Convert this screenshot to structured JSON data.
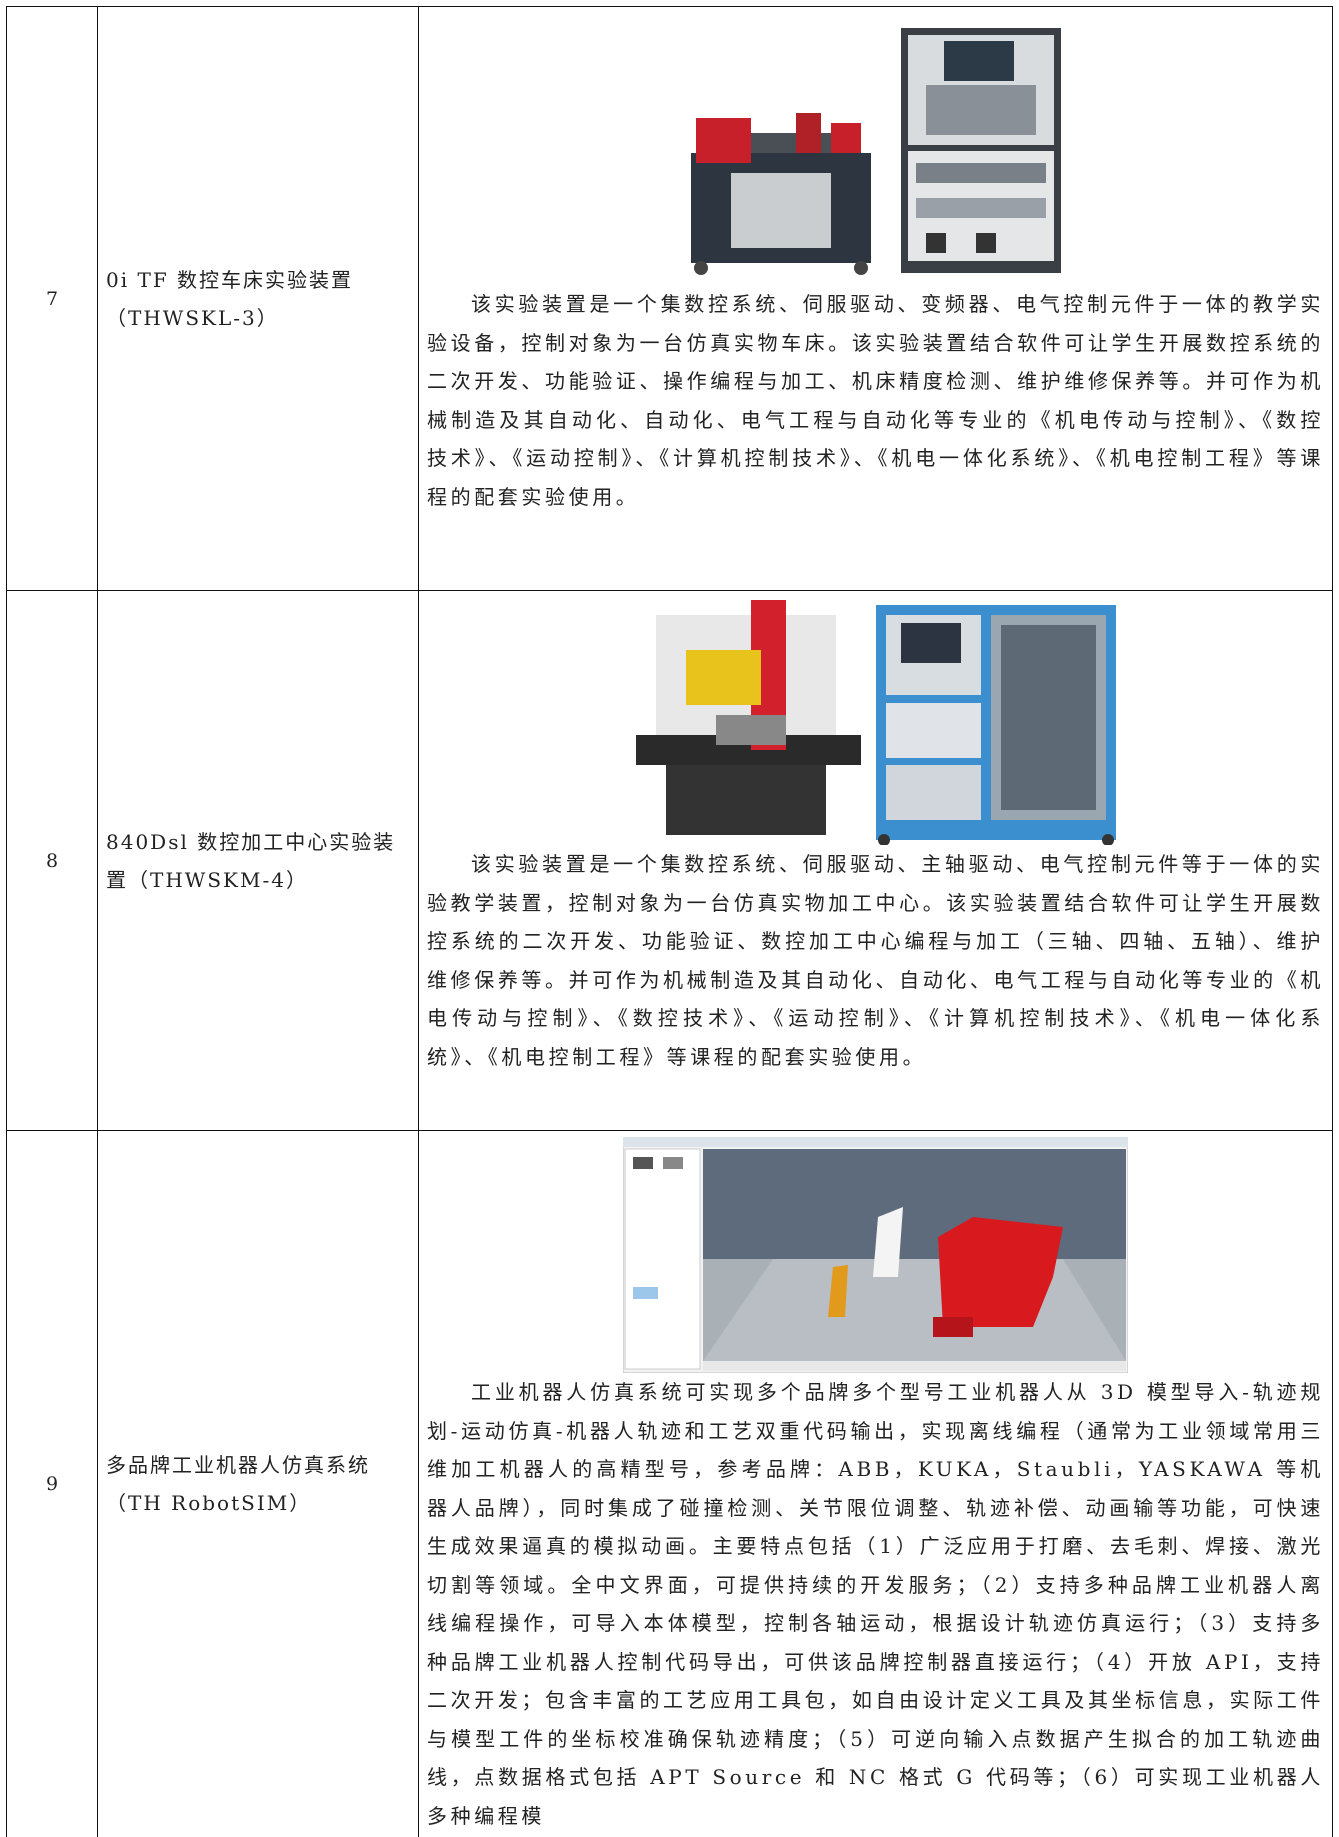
{
  "table": {
    "rows": [
      {
        "number": "7",
        "name_lines": [
          "0i TF 数控车床实验装置",
          "（THWSKL-3）"
        ],
        "description": "该实验装置是一个集数控系统、伺服驱动、变频器、电气控制元件于一体的教学实验设备，控制对象为一台仿真实物车床。该实验装置结合软件可让学生开展数控系统的二次开发、功能验证、操作编程与加工、机床精度检测、维护维修保养等。并可作为机械制造及其自动化、自动化、电气工程与自动化等专业的《机电传动与控制》、《数控技术》、《运动控制》、《计算机控制技术》、《机电一体化系统》、《机电控制工程》等课程的配套实验使用。"
      },
      {
        "number": "8",
        "name_lines": [
          "840Dsl 数控加工中心实验装",
          "置（THWSKM-4）"
        ],
        "description": "该实验装置是一个集数控系统、伺服驱动、主轴驱动、电气控制元件等于一体的实验教学装置，控制对象为一台仿真实物加工中心。该实验装置结合软件可让学生开展数控系统的二次开发、功能验证、数控加工中心编程与加工（三轴、四轴、五轴）、维护维修保养等。并可作为机械制造及其自动化、自动化、电气工程与自动化等专业的《机电传动与控制》、《数控技术》、《运动控制》、《计算机控制技术》、《机电一体化系统》、《机电控制工程》等课程的配套实验使用。"
      },
      {
        "number": "9",
        "name_lines": [
          "多品牌工业机器人仿真系统",
          "（TH RobotSIM）"
        ],
        "description": "工业机器人仿真系统可实现多个品牌多个型号工业机器人从 3D 模型导入-轨迹规划-运动仿真-机器人轨迹和工艺双重代码输出，实现离线编程（通常为工业领域常用三维加工机器人的高精型号，参考品牌：ABB，KUKA，Staubli，YASKAWA 等机器人品牌），同时集成了碰撞检测、关节限位调整、轨迹补偿、动画输等功能，可快速生成效果逼真的模拟动画。主要特点包括（1）广泛应用于打磨、去毛刺、焊接、激光切割等领域。全中文界面，可提供持续的开发服务；（2）支持多种品牌工业机器人离线编程操作，可导入本体模型，控制各轴运动，根据设计轨迹仿真运行；（3）支持多种品牌工业机器人控制代码导出，可供该品牌控制器直接运行；（4）开放 API，支持二次开发；包含丰富的工艺应用工具包，如自由设计定义工具及其坐标信息，实际工件与模型工件的坐标校准确保轨迹精度；（5）可逆向输入点数据产生拟合的加工轨迹曲线，点数据格式包括 APT Source 和 NC 格式 G 代码等；（6）可实现工业机器人多种编程模"
      }
    ]
  }
}
